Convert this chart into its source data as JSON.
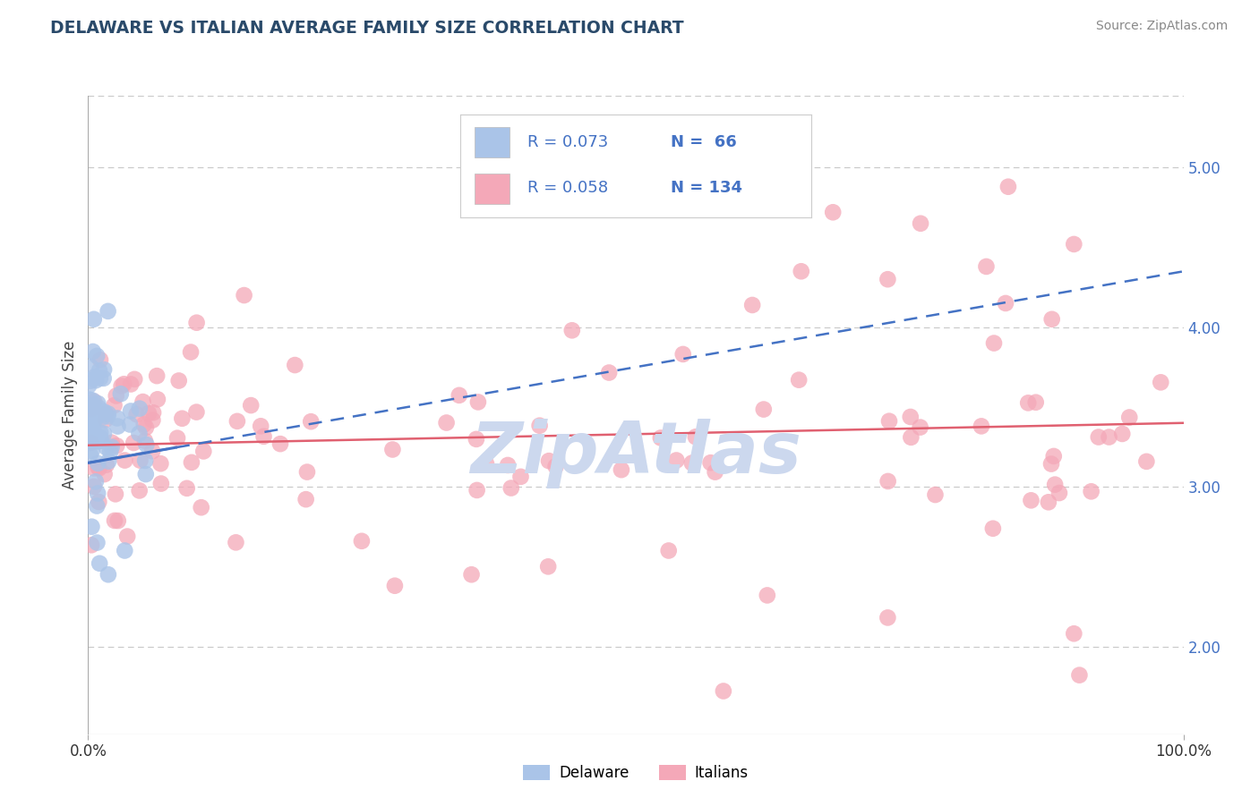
{
  "title": "DELAWARE VS ITALIAN AVERAGE FAMILY SIZE CORRELATION CHART",
  "source": "Source: ZipAtlas.com",
  "ylabel": "Average Family Size",
  "legend_R_blue": "R = 0.073",
  "legend_N_blue": "N =  66",
  "legend_R_pink": "R = 0.058",
  "legend_N_pink": "N = 134",
  "yticks_right": [
    2.0,
    3.0,
    4.0,
    5.0
  ],
  "xlim": [
    0,
    100
  ],
  "ylim": [
    1.45,
    5.45
  ],
  "blue_color": "#aac4e8",
  "pink_color": "#f4a8b8",
  "trend_blue_color": "#4472c4",
  "trend_pink_color": "#e06070",
  "watermark": "ZipAtlas",
  "watermark_color": "#ccd8ee",
  "background_color": "#ffffff",
  "grid_color": "#c8c8c8",
  "title_color": "#2a4a6a",
  "source_color": "#888888",
  "legend_text_color": "#4472c4",
  "legend_black_color": "#222222"
}
